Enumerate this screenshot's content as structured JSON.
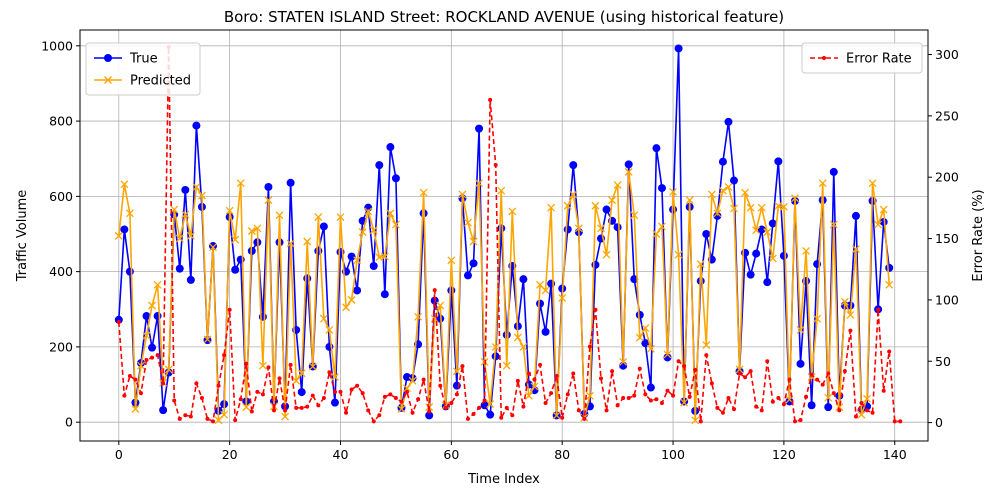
{
  "chart_data": {
    "type": "line",
    "title": "Boro: STATEN ISLAND Street: ROCKLAND AVENUE (using historical feature)",
    "xlabel": "Time Index",
    "ylabel": "Traffic Volume",
    "y2label": "Error Rate (%)",
    "xlim": [
      -7,
      146
    ],
    "ylim": [
      -50,
      1042
    ],
    "y2lim": [
      -15,
      320
    ],
    "xticks": [
      0,
      20,
      40,
      60,
      80,
      100,
      120,
      140
    ],
    "yticks": [
      0,
      200,
      400,
      600,
      800,
      1000
    ],
    "y2ticks": [
      0,
      50,
      100,
      150,
      200,
      250,
      300
    ],
    "grid": true,
    "legend_left_position": "upper left",
    "legend_right_position": "upper right",
    "series": [
      {
        "name": "True",
        "axis": "left",
        "color": "#0000ff",
        "marker": "circle",
        "values": [
          272,
          512,
          400,
          52,
          157,
          282,
          198,
          282,
          32,
          132,
          552,
          408,
          617,
          378,
          788,
          572,
          218,
          468,
          30,
          48,
          545,
          405,
          432,
          55,
          455,
          478,
          280,
          625,
          55,
          478,
          42,
          636,
          245,
          80,
          382,
          148,
          455,
          520,
          200,
          52,
          452,
          400,
          440,
          350,
          535,
          570,
          415,
          683,
          340,
          731,
          648,
          38,
          120,
          117,
          207,
          555,
          18,
          323,
          275,
          42,
          350,
          97,
          595,
          390,
          422,
          780,
          45,
          20,
          175,
          515,
          232,
          415,
          255,
          380,
          100,
          85,
          315,
          240,
          368,
          18,
          355,
          512,
          683,
          505,
          22,
          42,
          418,
          488,
          565,
          535,
          518,
          150,
          685,
          380,
          285,
          210,
          92,
          728,
          622,
          172,
          565,
          993,
          55,
          572,
          30,
          375,
          500,
          432,
          548,
          692,
          798,
          642,
          135,
          450,
          392,
          448,
          512,
          372,
          528,
          693,
          442,
          55,
          588,
          155,
          375,
          45,
          420,
          590,
          40,
          665,
          70,
          310,
          310,
          548,
          32,
          42,
          588,
          300,
          532,
          410
        ]
      },
      {
        "name": "Predicted",
        "axis": "left",
        "color": "#ffa500",
        "marker": "x",
        "values": [
          495,
          632,
          555,
          35,
          150,
          230,
          310,
          365,
          105,
          140,
          565,
          488,
          552,
          495,
          625,
          602,
          220,
          465,
          5,
          20,
          562,
          485,
          635,
          40,
          508,
          515,
          150,
          590,
          42,
          550,
          15,
          475,
          110,
          130,
          480,
          148,
          545,
          275,
          245,
          120,
          545,
          305,
          325,
          430,
          505,
          560,
          510,
          438,
          440,
          555,
          525,
          35,
          90,
          110,
          280,
          610,
          40,
          275,
          310,
          45,
          430,
          135,
          605,
          530,
          480,
          635,
          160,
          48,
          200,
          615,
          150,
          560,
          225,
          200,
          70,
          95,
          365,
          350,
          570,
          18,
          330,
          575,
          605,
          515,
          12,
          70,
          575,
          515,
          445,
          590,
          630,
          160,
          665,
          550,
          225,
          250,
          195,
          500,
          520,
          180,
          612,
          445,
          52,
          590,
          5,
          420,
          205,
          605,
          555,
          615,
          625,
          568,
          140,
          610,
          570,
          510,
          570,
          505,
          435,
          575,
          572,
          60,
          595,
          245,
          455,
          120,
          275,
          635,
          65,
          525,
          40,
          320,
          285,
          460,
          20,
          62,
          635,
          525,
          565,
          365
        ]
      },
      {
        "name": "Error Rate",
        "axis": "right",
        "color": "#ff0000",
        "marker": "dot",
        "dashed": true,
        "values": [
          82,
          22,
          38,
          35,
          24,
          51,
          53,
          55,
          32,
          306,
          18,
          3,
          6,
          5,
          32,
          20,
          3,
          1,
          30,
          55,
          92,
          2,
          19,
          48,
          9,
          25,
          23,
          45,
          10,
          36,
          10,
          47,
          12,
          12,
          13,
          22,
          14,
          20,
          41,
          25,
          25,
          8,
          27,
          30,
          24,
          10,
          1,
          6,
          21,
          23,
          20,
          17,
          25,
          8,
          19,
          35,
          9,
          108,
          30,
          12,
          16,
          23,
          46,
          3,
          7,
          12,
          18,
          263,
          210,
          4,
          12,
          6,
          34,
          13,
          40,
          35,
          47,
          16,
          24,
          38,
          4,
          23,
          40,
          10,
          3,
          62,
          92,
          36,
          10,
          42,
          14,
          20,
          20,
          22,
          44,
          23,
          18,
          19,
          16,
          26,
          22,
          50,
          46,
          21,
          43,
          1,
          55,
          32,
          12,
          8,
          20,
          11,
          40,
          37,
          42,
          13,
          10,
          50,
          17,
          20,
          15,
          35,
          1,
          2,
          21,
          39,
          35,
          31,
          40,
          24,
          10,
          42,
          75,
          5,
          16,
          10,
          8,
          92,
          26,
          58,
          1,
          1
        ]
      }
    ]
  }
}
